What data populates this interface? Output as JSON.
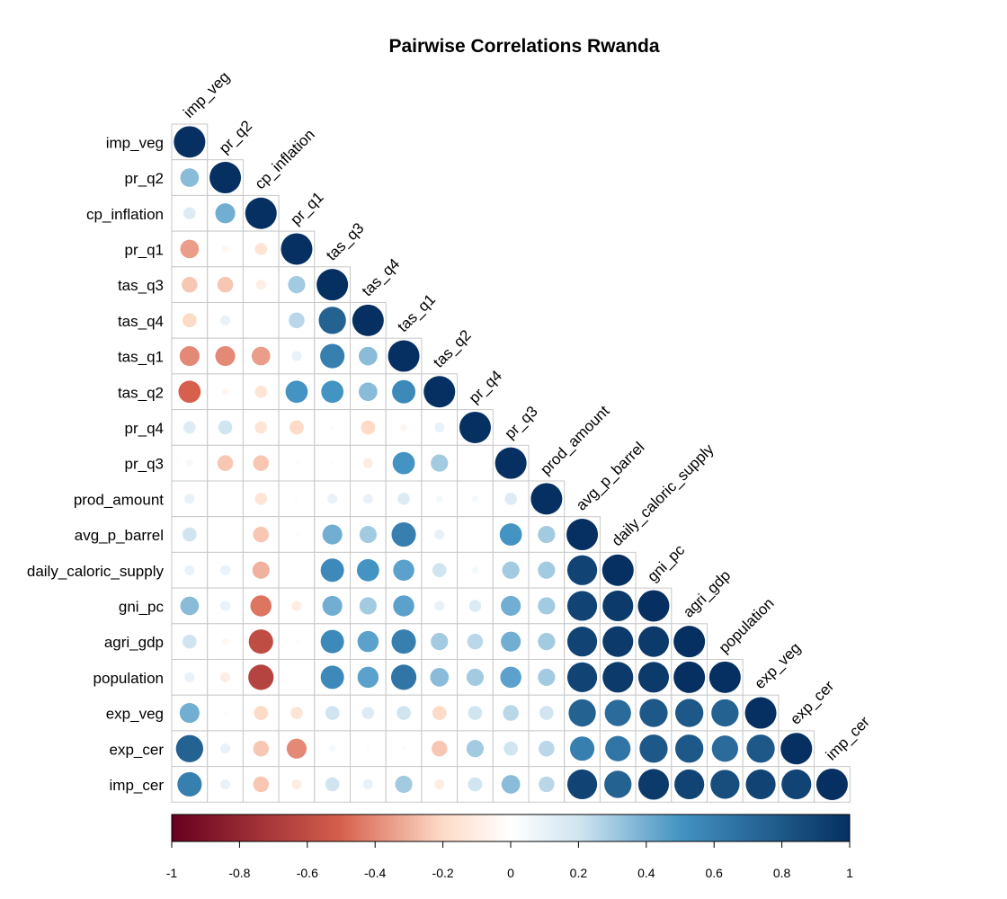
{
  "chart_data": {
    "type": "heatmap",
    "subtype": "correlation-circle-lower-triangle",
    "title": "Pairwise Correlations Rwanda",
    "variables": [
      "imp_veg",
      "pr_q2",
      "cp_inflation",
      "pr_q1",
      "tas_q3",
      "tas_q4",
      "tas_q1",
      "tas_q2",
      "pr_q4",
      "pr_q3",
      "prod_amount",
      "avg_p_barrel",
      "daily_caloric_supply",
      "gni_pc",
      "agri_gdp",
      "population",
      "exp_veg",
      "exp_cer",
      "imp_cer"
    ],
    "matrix": [
      [
        1.0
      ],
      [
        0.35,
        1.0
      ],
      [
        0.15,
        0.4,
        1.0
      ],
      [
        -0.35,
        -0.05,
        -0.15,
        1.0
      ],
      [
        -0.25,
        -0.25,
        -0.1,
        0.3,
        1.0
      ],
      [
        -0.2,
        0.1,
        0.0,
        0.25,
        0.75,
        1.0
      ],
      [
        -0.4,
        -0.4,
        -0.35,
        0.1,
        0.6,
        0.35,
        1.0
      ],
      [
        -0.5,
        -0.05,
        -0.15,
        0.5,
        0.5,
        0.35,
        0.55,
        1.0
      ],
      [
        0.15,
        0.2,
        -0.15,
        -0.2,
        0.02,
        -0.2,
        -0.05,
        0.1,
        1.0
      ],
      [
        0.05,
        -0.25,
        -0.25,
        0.02,
        0.02,
        -0.1,
        0.5,
        0.3,
        0.0,
        1.0
      ],
      [
        0.1,
        0.0,
        -0.15,
        0.02,
        0.1,
        0.1,
        0.15,
        0.05,
        0.05,
        0.15,
        1.0
      ],
      [
        0.2,
        0.0,
        -0.25,
        0.02,
        0.4,
        0.3,
        0.6,
        0.1,
        0.0,
        0.5,
        0.3,
        1.0
      ],
      [
        0.1,
        0.1,
        -0.3,
        0.0,
        0.55,
        0.5,
        0.45,
        0.2,
        0.05,
        0.3,
        0.3,
        0.9,
        1.0
      ],
      [
        0.35,
        0.1,
        -0.45,
        -0.1,
        0.4,
        0.3,
        0.45,
        0.1,
        0.15,
        0.4,
        0.3,
        0.9,
        0.95,
        1.0
      ],
      [
        0.2,
        -0.05,
        -0.6,
        0.02,
        0.55,
        0.45,
        0.6,
        0.3,
        0.25,
        0.4,
        0.3,
        0.9,
        0.95,
        0.95,
        1.0
      ],
      [
        0.1,
        -0.1,
        -0.65,
        0.0,
        0.55,
        0.45,
        0.65,
        0.35,
        0.3,
        0.45,
        0.3,
        0.9,
        0.95,
        0.95,
        1.0,
        1.0
      ],
      [
        0.4,
        0.02,
        -0.2,
        -0.15,
        0.2,
        0.15,
        0.2,
        -0.2,
        0.2,
        0.25,
        0.2,
        0.75,
        0.7,
        0.8,
        0.8,
        0.75,
        1.0
      ],
      [
        0.75,
        0.1,
        -0.25,
        -0.4,
        0.05,
        0.02,
        0.02,
        -0.25,
        0.3,
        0.2,
        0.25,
        0.6,
        0.65,
        0.8,
        0.8,
        0.7,
        0.8,
        1.0
      ],
      [
        0.6,
        0.1,
        -0.25,
        -0.1,
        0.2,
        0.1,
        0.3,
        -0.1,
        0.2,
        0.35,
        0.25,
        0.9,
        0.75,
        0.95,
        0.9,
        0.85,
        0.9,
        0.9,
        1.0
      ]
    ],
    "colorbar": {
      "range": [
        -1,
        1
      ],
      "ticks": [
        "-1",
        "-0.8",
        "-0.6",
        "-0.4",
        "-0.2",
        "0",
        "0.2",
        "0.4",
        "0.6",
        "0.8",
        "1"
      ]
    },
    "colors": {
      "neg_end": "#67001f",
      "neg_mid": "#d6604d",
      "neg_light": "#fddbc7",
      "neutral": "#ffffff",
      "pos_light": "#d1e5f0",
      "pos_mid": "#4393c3",
      "pos_end": "#053061",
      "grid": "#c8c8c8"
    }
  }
}
